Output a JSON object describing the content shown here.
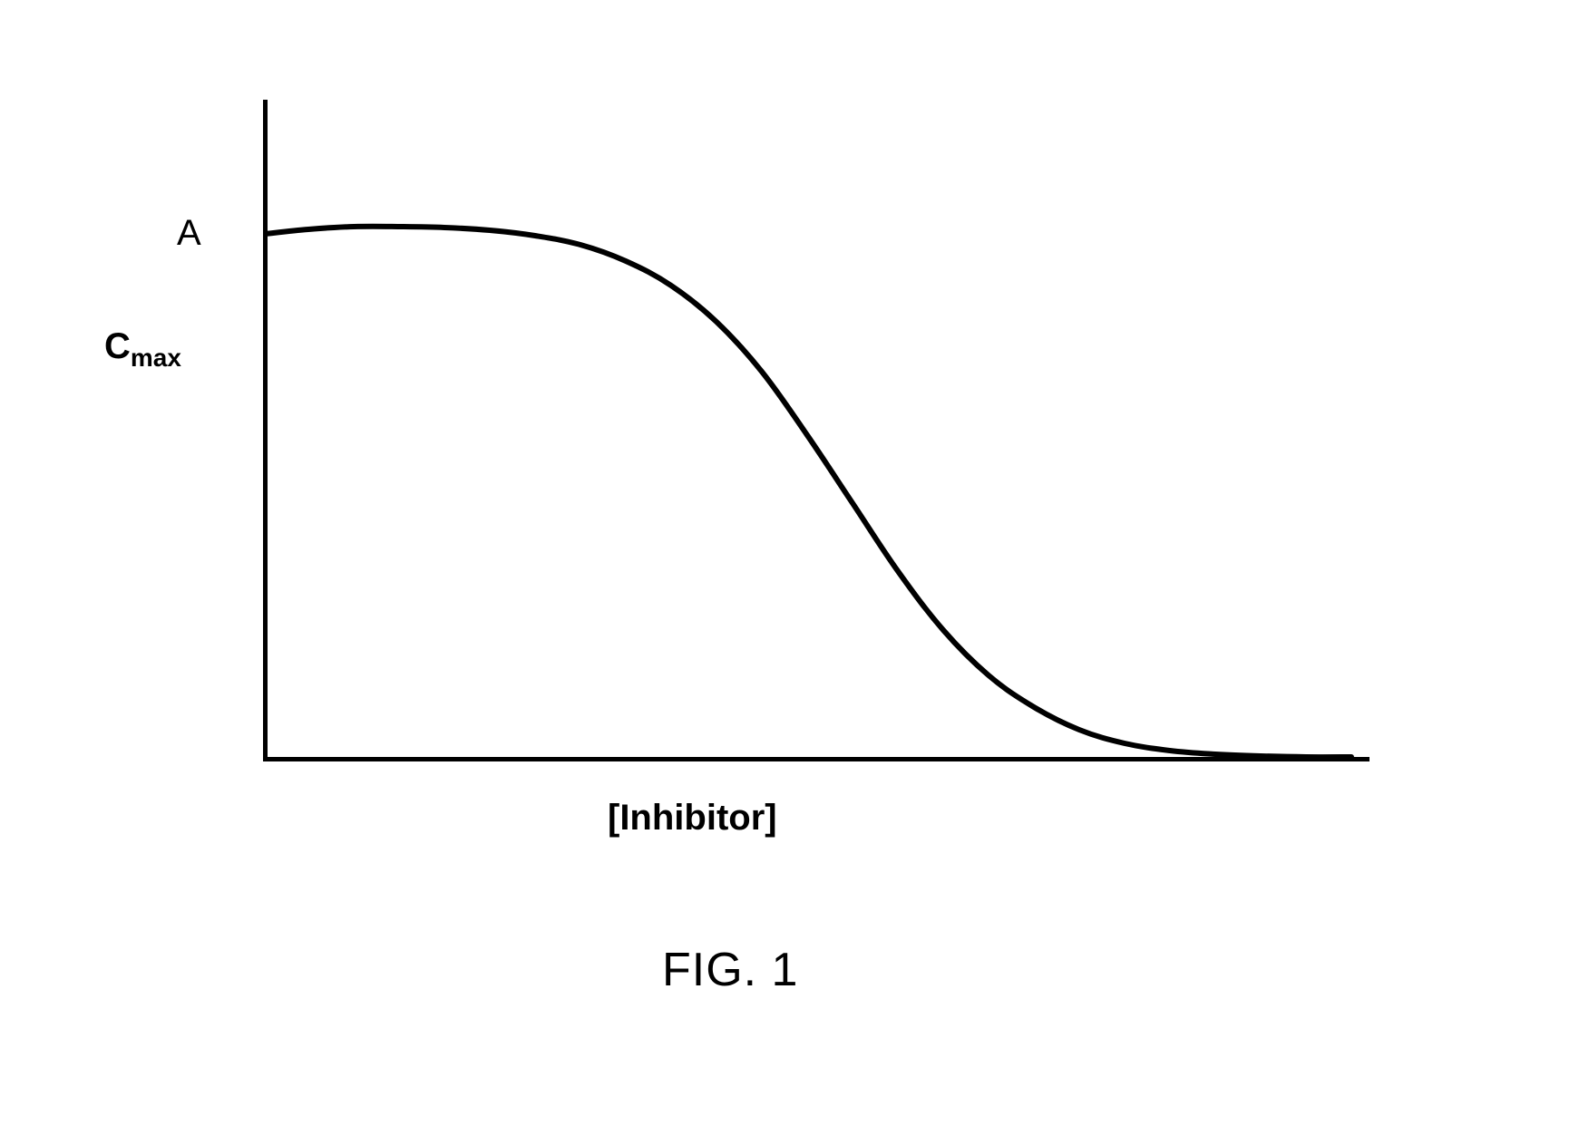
{
  "chart": {
    "type": "line",
    "xlabel": "[Inhibitor]",
    "figure_caption": "FIG. 1",
    "y_tick_labels": {
      "a": "A",
      "cmax_base": "C",
      "cmax_sub": "max"
    },
    "xlim": [
      0,
      1220
    ],
    "ylim": [
      0,
      730
    ],
    "axis_color": "#000000",
    "axis_width": 5,
    "curve_color": "#000000",
    "curve_width": 6,
    "background_color": "#ffffff",
    "label_fontsize": 40,
    "caption_fontsize": 52,
    "curve_points": [
      [
        2,
        148
      ],
      [
        50,
        143
      ],
      [
        100,
        140
      ],
      [
        150,
        140
      ],
      [
        200,
        141
      ],
      [
        250,
        144
      ],
      [
        300,
        150
      ],
      [
        350,
        160
      ],
      [
        400,
        178
      ],
      [
        450,
        205
      ],
      [
        500,
        245
      ],
      [
        550,
        300
      ],
      [
        600,
        370
      ],
      [
        650,
        445
      ],
      [
        700,
        520
      ],
      [
        750,
        585
      ],
      [
        800,
        635
      ],
      [
        850,
        670
      ],
      [
        900,
        695
      ],
      [
        950,
        710
      ],
      [
        1000,
        718
      ],
      [
        1050,
        722
      ],
      [
        1100,
        724
      ],
      [
        1150,
        725
      ],
      [
        1200,
        725
      ]
    ]
  }
}
